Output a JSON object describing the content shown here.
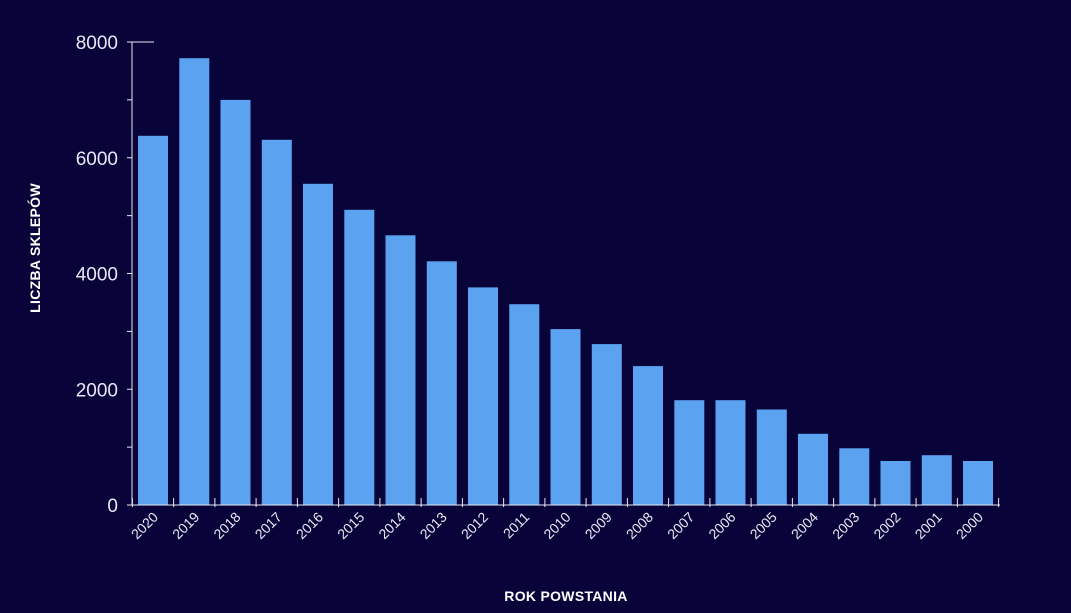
{
  "chart_data": {
    "type": "bar",
    "xlabel": "ROK POWSTANIA",
    "ylabel": "LICZBA SKLEPÓW",
    "ylim": [
      0,
      8000
    ],
    "yticks": [
      0,
      2000,
      4000,
      6000,
      8000
    ],
    "grid": false,
    "categories": [
      "2020",
      "2019",
      "2018",
      "2017",
      "2016",
      "2015",
      "2014",
      "2013",
      "2012",
      "2011",
      "2010",
      "2009",
      "2008",
      "2007",
      "2006",
      "2005",
      "2004",
      "2003",
      "2002",
      "2001",
      "2000"
    ],
    "series": [
      {
        "values": [
          6380,
          7720,
          7000,
          6310,
          5550,
          5100,
          4660,
          4210,
          3760,
          3470,
          3040,
          2780,
          2400,
          1810,
          1810,
          1650,
          1230,
          980,
          760,
          860,
          760
        ]
      }
    ]
  },
  "colors": {
    "background": "#08043a",
    "bar": "#5ba3f0",
    "axis": "#e8e8f4"
  }
}
